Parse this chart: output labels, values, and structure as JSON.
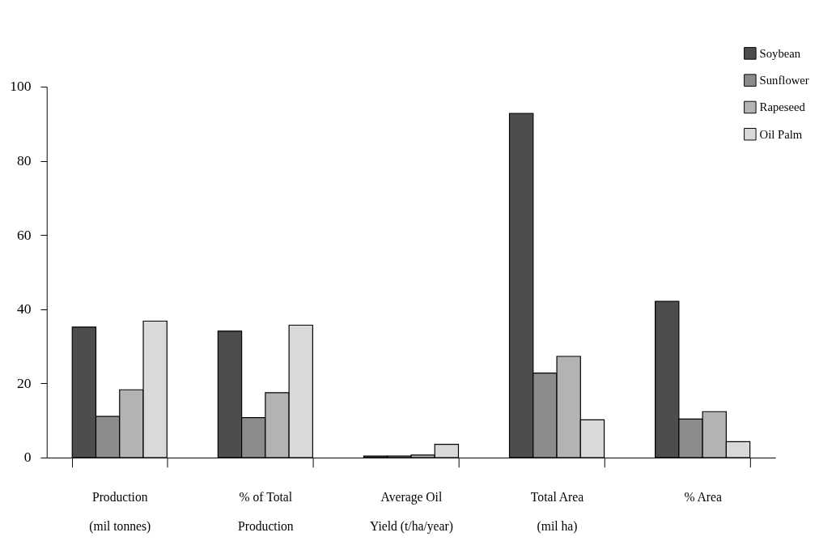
{
  "chart_data": {
    "type": "bar",
    "categories": [
      "Production\n(mil tonnes)",
      "% of Total\nProduction",
      "Average Oil\nYield (t/ha/year)",
      "Total Area\n(mil ha)",
      "% Area"
    ],
    "series": [
      {
        "name": "Soybean",
        "color": "#4d4d4d",
        "values": [
          35.2,
          34.1,
          0.4,
          92.8,
          42.1
        ]
      },
      {
        "name": "Sunflower",
        "color": "#8c8c8c",
        "values": [
          11.1,
          10.8,
          0.4,
          22.8,
          10.4
        ]
      },
      {
        "name": "Rapeseed",
        "color": "#b3b3b3",
        "values": [
          18.3,
          17.5,
          0.7,
          27.3,
          12.4
        ]
      },
      {
        "name": "Oil Palm",
        "color": "#d9d9d9",
        "values": [
          36.8,
          35.7,
          3.6,
          10.2,
          4.3
        ]
      }
    ],
    "ylim": [
      0,
      100
    ],
    "yticks": [
      0,
      20,
      40,
      60,
      80,
      100
    ],
    "grid": false,
    "legend": "top right"
  }
}
